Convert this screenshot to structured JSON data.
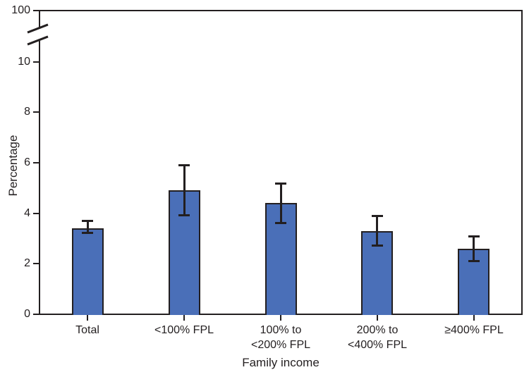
{
  "chart_data": {
    "type": "bar",
    "title": "",
    "xlabel": "Family income",
    "ylabel": "Percentage",
    "categories": [
      "Total",
      "<100% FPL",
      "100% to <200% FPL",
      "200% to <400% FPL",
      "≥400% FPL"
    ],
    "category_lines": [
      [
        "Total"
      ],
      [
        "<100% FPL"
      ],
      [
        "100% to",
        "<200% FPL"
      ],
      [
        "200% to",
        "<400% FPL"
      ],
      [
        "≥400% FPL"
      ]
    ],
    "series": [
      {
        "name": "Percentage",
        "values": [
          3.4,
          4.9,
          4.4,
          3.3,
          2.6
        ],
        "ci_low": [
          3.2,
          3.9,
          3.6,
          2.7,
          2.1
        ],
        "ci_high": [
          3.7,
          5.9,
          5.2,
          3.9,
          3.1
        ]
      }
    ],
    "error_bars": true,
    "yticks": [
      0,
      2,
      4,
      6,
      8,
      10
    ],
    "ytick_top_label": "100",
    "axis_break": {
      "between_lower": 10,
      "between_upper": 100
    },
    "ylim_lower_segment": [
      0,
      11.2
    ],
    "grid": false,
    "legend": "none",
    "bar_color": "#4a6fb8",
    "axis_color": "#231f20"
  }
}
